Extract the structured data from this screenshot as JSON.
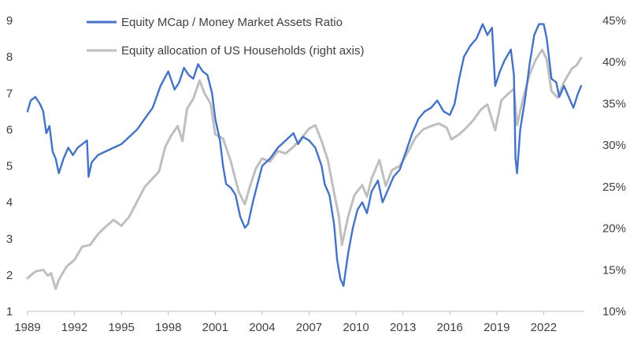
{
  "chart_data": {
    "type": "line",
    "title": "",
    "xlabel": "",
    "ylabel": "",
    "xlim": [
      1989.0,
      2024.6
    ],
    "ylim_left": [
      1,
      9
    ],
    "ylim_right": [
      10,
      45
    ],
    "grid": false,
    "legend_position": "top-left",
    "x_ticks": [
      "1989",
      "1992",
      "1995",
      "1998",
      "2001",
      "2004",
      "2007",
      "2010",
      "2013",
      "2016",
      "2019",
      "2022"
    ],
    "y_ticks_left": [
      "1",
      "2",
      "3",
      "4",
      "5",
      "6",
      "7",
      "8",
      "9"
    ],
    "y_ticks_right": [
      "10%",
      "15%",
      "20%",
      "25%",
      "30%",
      "35%",
      "40%",
      "45%"
    ],
    "series": [
      {
        "name": "Equity MCap / Money Market Assets Ratio",
        "axis": "left",
        "color": "#4472C4",
        "points": [
          [
            1989.0,
            6.5
          ],
          [
            1989.2,
            6.8
          ],
          [
            1989.5,
            6.9
          ],
          [
            1989.8,
            6.7
          ],
          [
            1990.0,
            6.5
          ],
          [
            1990.2,
            5.9
          ],
          [
            1990.4,
            6.1
          ],
          [
            1990.6,
            5.4
          ],
          [
            1990.8,
            5.2
          ],
          [
            1991.0,
            4.8
          ],
          [
            1991.3,
            5.2
          ],
          [
            1991.6,
            5.5
          ],
          [
            1991.9,
            5.3
          ],
          [
            1992.2,
            5.5
          ],
          [
            1992.5,
            5.6
          ],
          [
            1992.8,
            5.7
          ],
          [
            1992.9,
            4.7
          ],
          [
            1993.1,
            5.1
          ],
          [
            1993.5,
            5.3
          ],
          [
            1994.0,
            5.4
          ],
          [
            1994.5,
            5.5
          ],
          [
            1995.0,
            5.6
          ],
          [
            1995.5,
            5.8
          ],
          [
            1996.0,
            6.0
          ],
          [
            1996.5,
            6.3
          ],
          [
            1997.0,
            6.6
          ],
          [
            1997.5,
            7.2
          ],
          [
            1998.0,
            7.6
          ],
          [
            1998.4,
            7.1
          ],
          [
            1998.7,
            7.3
          ],
          [
            1999.0,
            7.7
          ],
          [
            1999.3,
            7.5
          ],
          [
            1999.6,
            7.4
          ],
          [
            1999.9,
            7.8
          ],
          [
            2000.2,
            7.6
          ],
          [
            2000.5,
            7.5
          ],
          [
            2000.8,
            7.0
          ],
          [
            2001.0,
            6.3
          ],
          [
            2001.3,
            5.7
          ],
          [
            2001.5,
            5.0
          ],
          [
            2001.7,
            4.5
          ],
          [
            2002.0,
            4.4
          ],
          [
            2002.3,
            4.2
          ],
          [
            2002.6,
            3.6
          ],
          [
            2002.9,
            3.3
          ],
          [
            2003.1,
            3.4
          ],
          [
            2003.4,
            4.0
          ],
          [
            2003.7,
            4.5
          ],
          [
            2004.0,
            5.0
          ],
          [
            2004.5,
            5.2
          ],
          [
            2005.0,
            5.5
          ],
          [
            2005.5,
            5.7
          ],
          [
            2006.0,
            5.9
          ],
          [
            2006.3,
            5.6
          ],
          [
            2006.6,
            5.8
          ],
          [
            2007.0,
            5.7
          ],
          [
            2007.4,
            5.5
          ],
          [
            2007.8,
            5.0
          ],
          [
            2008.0,
            4.5
          ],
          [
            2008.3,
            4.2
          ],
          [
            2008.6,
            3.4
          ],
          [
            2008.8,
            2.4
          ],
          [
            2009.0,
            1.9
          ],
          [
            2009.2,
            1.7
          ],
          [
            2009.5,
            2.6
          ],
          [
            2009.8,
            3.3
          ],
          [
            2010.1,
            3.8
          ],
          [
            2010.4,
            4.0
          ],
          [
            2010.7,
            3.7
          ],
          [
            2011.0,
            4.3
          ],
          [
            2011.4,
            4.6
          ],
          [
            2011.7,
            4.0
          ],
          [
            2012.0,
            4.3
          ],
          [
            2012.4,
            4.7
          ],
          [
            2012.8,
            4.9
          ],
          [
            2013.2,
            5.4
          ],
          [
            2013.6,
            5.9
          ],
          [
            2014.0,
            6.3
          ],
          [
            2014.4,
            6.5
          ],
          [
            2014.8,
            6.6
          ],
          [
            2015.2,
            6.8
          ],
          [
            2015.6,
            6.5
          ],
          [
            2016.0,
            6.4
          ],
          [
            2016.3,
            6.7
          ],
          [
            2016.6,
            7.4
          ],
          [
            2016.9,
            8.0
          ],
          [
            2017.3,
            8.3
          ],
          [
            2017.7,
            8.5
          ],
          [
            2018.1,
            8.9
          ],
          [
            2018.4,
            8.6
          ],
          [
            2018.7,
            8.8
          ],
          [
            2018.9,
            7.2
          ],
          [
            2019.2,
            7.6
          ],
          [
            2019.5,
            7.9
          ],
          [
            2019.9,
            8.2
          ],
          [
            2020.1,
            7.5
          ],
          [
            2020.2,
            5.2
          ],
          [
            2020.3,
            4.8
          ],
          [
            2020.5,
            6.0
          ],
          [
            2020.8,
            6.8
          ],
          [
            2021.1,
            7.8
          ],
          [
            2021.4,
            8.6
          ],
          [
            2021.7,
            8.9
          ],
          [
            2022.0,
            8.9
          ],
          [
            2022.2,
            8.5
          ],
          [
            2022.5,
            7.4
          ],
          [
            2022.8,
            7.3
          ],
          [
            2023.0,
            6.9
          ],
          [
            2023.3,
            7.2
          ],
          [
            2023.6,
            6.9
          ],
          [
            2023.9,
            6.6
          ],
          [
            2024.2,
            7.0
          ],
          [
            2024.4,
            7.2
          ]
        ]
      },
      {
        "name": "Equity allocation of US Households (right axis)",
        "axis": "right",
        "color": "#BFBFBF",
        "points": [
          [
            1989.0,
            14.0
          ],
          [
            1989.5,
            14.8
          ],
          [
            1990.0,
            15.0
          ],
          [
            1990.3,
            14.3
          ],
          [
            1990.5,
            14.6
          ],
          [
            1990.8,
            12.7
          ],
          [
            1991.0,
            13.8
          ],
          [
            1991.5,
            15.4
          ],
          [
            1992.0,
            16.2
          ],
          [
            1992.5,
            17.8
          ],
          [
            1993.0,
            18.0
          ],
          [
            1993.5,
            19.3
          ],
          [
            1994.0,
            20.2
          ],
          [
            1994.5,
            21.0
          ],
          [
            1995.0,
            20.3
          ],
          [
            1995.5,
            21.4
          ],
          [
            1996.0,
            23.2
          ],
          [
            1996.5,
            25.0
          ],
          [
            1997.0,
            26.0
          ],
          [
            1997.4,
            26.8
          ],
          [
            1997.8,
            29.8
          ],
          [
            1998.2,
            31.2
          ],
          [
            1998.6,
            32.3
          ],
          [
            1998.9,
            30.5
          ],
          [
            1999.2,
            34.4
          ],
          [
            1999.6,
            35.6
          ],
          [
            2000.0,
            37.8
          ],
          [
            2000.3,
            36.3
          ],
          [
            2000.7,
            35.0
          ],
          [
            2001.0,
            31.3
          ],
          [
            2001.5,
            30.8
          ],
          [
            2002.0,
            28.0
          ],
          [
            2002.5,
            24.4
          ],
          [
            2002.9,
            22.9
          ],
          [
            2003.2,
            24.9
          ],
          [
            2003.6,
            27.2
          ],
          [
            2004.0,
            28.4
          ],
          [
            2004.5,
            28.0
          ],
          [
            2005.0,
            29.3
          ],
          [
            2005.5,
            29.0
          ],
          [
            2006.0,
            29.8
          ],
          [
            2006.5,
            30.8
          ],
          [
            2007.0,
            32.0
          ],
          [
            2007.4,
            32.4
          ],
          [
            2007.8,
            30.5
          ],
          [
            2008.2,
            28.2
          ],
          [
            2008.6,
            24.3
          ],
          [
            2008.9,
            21.5
          ],
          [
            2009.1,
            18.0
          ],
          [
            2009.5,
            21.4
          ],
          [
            2009.9,
            24.0
          ],
          [
            2010.4,
            25.2
          ],
          [
            2010.7,
            23.8
          ],
          [
            2011.0,
            26.0
          ],
          [
            2011.5,
            28.2
          ],
          [
            2011.9,
            25.1
          ],
          [
            2012.3,
            27.0
          ],
          [
            2012.8,
            27.5
          ],
          [
            2013.3,
            29.1
          ],
          [
            2013.8,
            30.9
          ],
          [
            2014.3,
            31.9
          ],
          [
            2014.8,
            32.3
          ],
          [
            2015.3,
            32.6
          ],
          [
            2015.8,
            32.1
          ],
          [
            2016.1,
            30.7
          ],
          [
            2016.6,
            31.3
          ],
          [
            2017.0,
            32.0
          ],
          [
            2017.5,
            33.0
          ],
          [
            2018.0,
            34.3
          ],
          [
            2018.4,
            34.9
          ],
          [
            2018.9,
            31.8
          ],
          [
            2019.3,
            35.4
          ],
          [
            2019.8,
            36.3
          ],
          [
            2020.1,
            36.8
          ],
          [
            2020.3,
            32.4
          ],
          [
            2020.7,
            35.7
          ],
          [
            2021.1,
            38.5
          ],
          [
            2021.5,
            40.3
          ],
          [
            2021.9,
            41.5
          ],
          [
            2022.2,
            40.3
          ],
          [
            2022.5,
            36.5
          ],
          [
            2022.9,
            35.7
          ],
          [
            2023.3,
            37.6
          ],
          [
            2023.8,
            39.2
          ],
          [
            2024.1,
            39.6
          ],
          [
            2024.4,
            40.5
          ]
        ]
      }
    ]
  }
}
